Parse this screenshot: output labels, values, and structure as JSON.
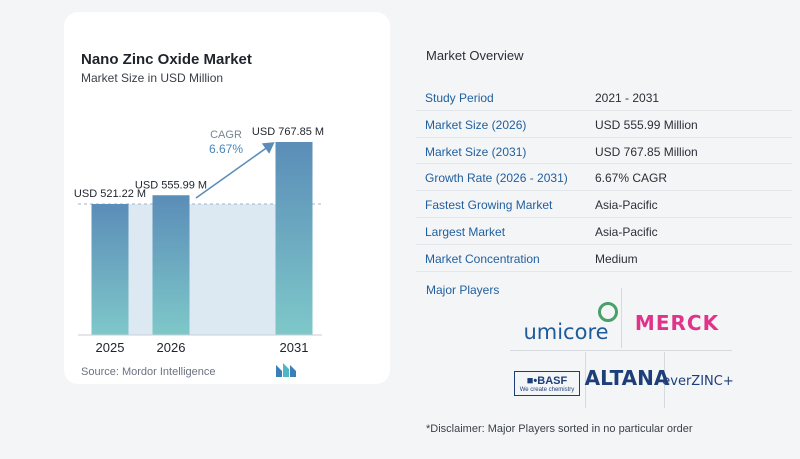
{
  "chart_data": {
    "type": "bar",
    "title": "Nano Zinc Oxide Market",
    "subtitle": "Market Size in USD Million",
    "categories": [
      "2025",
      "2026",
      "2031"
    ],
    "values": [
      521.22,
      555.99,
      767.85
    ],
    "value_labels": [
      "USD 521.22 M",
      "USD 555.99 M",
      "USD 767.85 M"
    ],
    "cagr_label": "CAGR",
    "cagr_value": "6.67%",
    "source": "Source: Mordor Intelligence",
    "bar_color_top": "#5b8db8",
    "bar_color_bottom": "#7ec8c9",
    "band_color": "#dde9f2",
    "arrow_color": "#5b8db8"
  },
  "overview": {
    "title": "Market Overview",
    "rows": [
      {
        "label": "Study Period",
        "value": "2021 - 2031"
      },
      {
        "label": "Market Size (2026)",
        "value": "USD 555.99 Million"
      },
      {
        "label": "Market Size (2031)",
        "value": "USD 767.85 Million"
      },
      {
        "label": "Growth Rate (2026 - 2031)",
        "value": "6.67% CAGR"
      },
      {
        "label": "Fastest Growing Market",
        "value": "Asia-Pacific"
      },
      {
        "label": "Largest Market",
        "value": "Asia-Pacific"
      },
      {
        "label": "Market Concentration",
        "value": "Medium"
      }
    ],
    "players_title": "Major Players",
    "players": {
      "umicore": "umicore",
      "merck": "MERCK",
      "basf": "■•BASF",
      "basf_tagline": "We create chemistry",
      "altana": "ALTANA",
      "everzinc": "everZINC+"
    },
    "disclaimer": "*Disclaimer: Major Players sorted in no particular order"
  }
}
